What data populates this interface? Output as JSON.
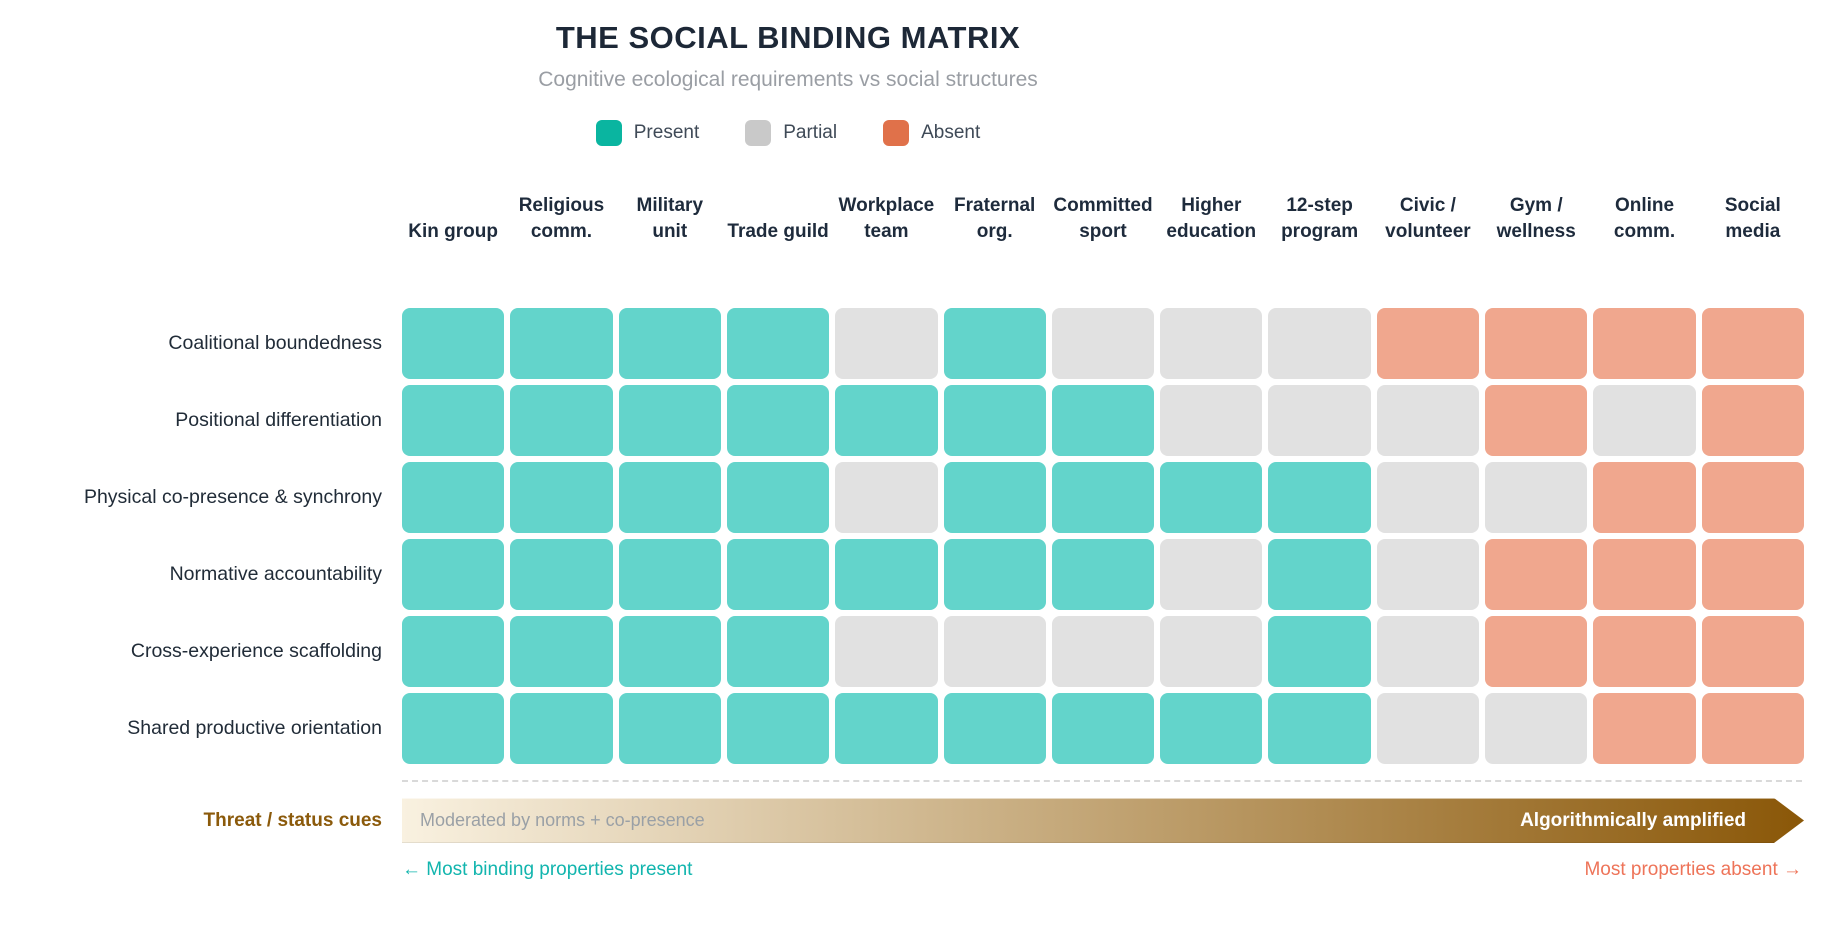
{
  "header": {
    "title": "THE SOCIAL BINDING MATRIX",
    "subtitle": "Cognitive ecological requirements vs social structures"
  },
  "legend": [
    {
      "label": "Present",
      "color": "#0ab5a0"
    },
    {
      "label": "Partial",
      "color": "#c9c9c9"
    },
    {
      "label": "Absent",
      "color": "#e0714a"
    }
  ],
  "chart_data": {
    "type": "heatmap",
    "title": "THE SOCIAL BINDING MATRIX",
    "subtitle": "Cognitive ecological requirements vs social structures",
    "legend_entries": [
      "Present",
      "Partial",
      "Absent"
    ],
    "columns": [
      "Kin group",
      "Religious comm.",
      "Military unit",
      "Trade guild",
      "Workplace team",
      "Fraternal org.",
      "Committed sport",
      "Higher education",
      "12-step program",
      "Civic / volunteer",
      "Gym / wellness",
      "Online comm.",
      "Social media"
    ],
    "rows": [
      "Coalitional boundedness",
      "Positional differentiation",
      "Physical co-presence & synchrony",
      "Normative accountability",
      "Cross-experience scaffolding",
      "Shared productive orientation"
    ],
    "values": [
      [
        "present",
        "present",
        "present",
        "present",
        "partial",
        "present",
        "partial",
        "partial",
        "partial",
        "absent",
        "absent",
        "absent",
        "absent"
      ],
      [
        "present",
        "present",
        "present",
        "present",
        "present",
        "present",
        "present",
        "partial",
        "partial",
        "partial",
        "absent",
        "partial",
        "absent"
      ],
      [
        "present",
        "present",
        "present",
        "present",
        "partial",
        "present",
        "present",
        "present",
        "present",
        "partial",
        "partial",
        "absent",
        "absent"
      ],
      [
        "present",
        "present",
        "present",
        "present",
        "present",
        "present",
        "present",
        "partial",
        "present",
        "partial",
        "absent",
        "absent",
        "absent"
      ],
      [
        "present",
        "present",
        "present",
        "present",
        "partial",
        "partial",
        "partial",
        "partial",
        "present",
        "partial",
        "absent",
        "absent",
        "absent"
      ],
      [
        "present",
        "present",
        "present",
        "present",
        "present",
        "present",
        "present",
        "present",
        "present",
        "partial",
        "partial",
        "absent",
        "absent"
      ]
    ],
    "cell_colors": {
      "present": "#63d4cb",
      "partial": "#e1e1e1",
      "absent": "#f0a78e"
    }
  },
  "threat_row": {
    "label": "Threat / status cues",
    "bar_left_text": "Moderated by norms + co-presence",
    "bar_right_text": "Algorithmically amplified",
    "gradient_start": "#f9f1e0",
    "gradient_end": "#8a5708"
  },
  "footnotes": {
    "left": "← Most binding properties present",
    "right": "Most properties absent →",
    "left_color": "#12b5ae",
    "right_color": "#ee7459"
  }
}
